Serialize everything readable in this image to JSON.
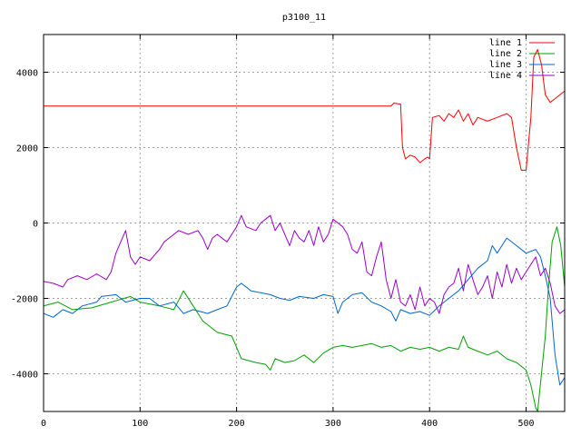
{
  "chart_data": {
    "type": "line",
    "title": "p3100_11",
    "xlabel": "",
    "ylabel": "",
    "xlim": [
      0,
      540
    ],
    "ylim": [
      -5000,
      5000
    ],
    "xticks": [
      0,
      100,
      200,
      300,
      400,
      500
    ],
    "yticks": [
      -4000,
      -2000,
      0,
      2000,
      4000
    ],
    "grid": true,
    "legend_position": "top-right",
    "series": [
      {
        "name": "line 1",
        "color": "#ff0000",
        "points": [
          [
            0,
            3100
          ],
          [
            100,
            3100
          ],
          [
            200,
            3100
          ],
          [
            300,
            3100
          ],
          [
            360,
            3100
          ],
          [
            363,
            3180
          ],
          [
            370,
            3150
          ],
          [
            372,
            2000
          ],
          [
            375,
            1700
          ],
          [
            380,
            1800
          ],
          [
            385,
            1750
          ],
          [
            390,
            1600
          ],
          [
            395,
            1700
          ],
          [
            398,
            1750
          ],
          [
            400,
            1700
          ],
          [
            403,
            2800
          ],
          [
            410,
            2850
          ],
          [
            415,
            2700
          ],
          [
            420,
            2900
          ],
          [
            425,
            2800
          ],
          [
            430,
            3000
          ],
          [
            435,
            2700
          ],
          [
            440,
            2900
          ],
          [
            445,
            2600
          ],
          [
            450,
            2800
          ],
          [
            460,
            2700
          ],
          [
            470,
            2800
          ],
          [
            480,
            2900
          ],
          [
            485,
            2800
          ],
          [
            490,
            2000
          ],
          [
            495,
            1400
          ],
          [
            500,
            1400
          ],
          [
            505,
            2800
          ],
          [
            508,
            4400
          ],
          [
            512,
            4600
          ],
          [
            516,
            4200
          ],
          [
            520,
            3400
          ],
          [
            525,
            3200
          ],
          [
            530,
            3300
          ],
          [
            535,
            3400
          ],
          [
            540,
            3500
          ]
        ]
      },
      {
        "name": "line 2",
        "color": "#00a000",
        "points": [
          [
            0,
            -2200
          ],
          [
            15,
            -2100
          ],
          [
            30,
            -2300
          ],
          [
            50,
            -2250
          ],
          [
            70,
            -2100
          ],
          [
            90,
            -1950
          ],
          [
            100,
            -2100
          ],
          [
            120,
            -2200
          ],
          [
            135,
            -2300
          ],
          [
            145,
            -1800
          ],
          [
            155,
            -2200
          ],
          [
            165,
            -2600
          ],
          [
            180,
            -2900
          ],
          [
            195,
            -3000
          ],
          [
            200,
            -3300
          ],
          [
            205,
            -3600
          ],
          [
            220,
            -3700
          ],
          [
            230,
            -3750
          ],
          [
            235,
            -3900
          ],
          [
            240,
            -3600
          ],
          [
            250,
            -3700
          ],
          [
            260,
            -3650
          ],
          [
            270,
            -3500
          ],
          [
            280,
            -3700
          ],
          [
            290,
            -3450
          ],
          [
            300,
            -3300
          ],
          [
            310,
            -3250
          ],
          [
            320,
            -3300
          ],
          [
            330,
            -3250
          ],
          [
            340,
            -3200
          ],
          [
            350,
            -3300
          ],
          [
            360,
            -3250
          ],
          [
            370,
            -3400
          ],
          [
            380,
            -3300
          ],
          [
            390,
            -3350
          ],
          [
            400,
            -3300
          ],
          [
            410,
            -3400
          ],
          [
            420,
            -3300
          ],
          [
            430,
            -3350
          ],
          [
            435,
            -3000
          ],
          [
            440,
            -3300
          ],
          [
            450,
            -3400
          ],
          [
            460,
            -3500
          ],
          [
            470,
            -3400
          ],
          [
            480,
            -3600
          ],
          [
            490,
            -3700
          ],
          [
            500,
            -3900
          ],
          [
            505,
            -4300
          ],
          [
            510,
            -4900
          ],
          [
            512,
            -5000
          ],
          [
            520,
            -3000
          ],
          [
            523,
            -1800
          ],
          [
            527,
            -500
          ],
          [
            532,
            -100
          ],
          [
            536,
            -600
          ],
          [
            540,
            -1700
          ]
        ]
      },
      {
        "name": "line 3",
        "color": "#0066cc",
        "points": [
          [
            0,
            -2400
          ],
          [
            10,
            -2500
          ],
          [
            20,
            -2300
          ],
          [
            30,
            -2400
          ],
          [
            40,
            -2200
          ],
          [
            55,
            -2100
          ],
          [
            60,
            -1950
          ],
          [
            75,
            -1900
          ],
          [
            85,
            -2100
          ],
          [
            100,
            -2000
          ],
          [
            110,
            -2000
          ],
          [
            120,
            -2200
          ],
          [
            135,
            -2100
          ],
          [
            145,
            -2400
          ],
          [
            155,
            -2300
          ],
          [
            170,
            -2400
          ],
          [
            180,
            -2300
          ],
          [
            190,
            -2200
          ],
          [
            200,
            -1700
          ],
          [
            205,
            -1600
          ],
          [
            215,
            -1800
          ],
          [
            225,
            -1850
          ],
          [
            235,
            -1900
          ],
          [
            245,
            -2000
          ],
          [
            255,
            -2050
          ],
          [
            265,
            -1950
          ],
          [
            280,
            -2000
          ],
          [
            290,
            -1900
          ],
          [
            300,
            -1950
          ],
          [
            305,
            -2400
          ],
          [
            310,
            -2100
          ],
          [
            320,
            -1900
          ],
          [
            330,
            -1850
          ],
          [
            340,
            -2100
          ],
          [
            350,
            -2200
          ],
          [
            360,
            -2350
          ],
          [
            365,
            -2600
          ],
          [
            370,
            -2300
          ],
          [
            380,
            -2400
          ],
          [
            390,
            -2350
          ],
          [
            400,
            -2450
          ],
          [
            410,
            -2200
          ],
          [
            420,
            -2000
          ],
          [
            430,
            -1800
          ],
          [
            440,
            -1500
          ],
          [
            450,
            -1200
          ],
          [
            460,
            -1000
          ],
          [
            465,
            -600
          ],
          [
            470,
            -800
          ],
          [
            480,
            -400
          ],
          [
            490,
            -600
          ],
          [
            500,
            -800
          ],
          [
            510,
            -700
          ],
          [
            515,
            -900
          ],
          [
            520,
            -1400
          ],
          [
            525,
            -2000
          ],
          [
            530,
            -3500
          ],
          [
            535,
            -4300
          ],
          [
            540,
            -4100
          ]
        ]
      },
      {
        "name": "line 4",
        "color": "#9900cc",
        "points": [
          [
            0,
            -1550
          ],
          [
            10,
            -1600
          ],
          [
            20,
            -1700
          ],
          [
            25,
            -1500
          ],
          [
            35,
            -1400
          ],
          [
            45,
            -1500
          ],
          [
            55,
            -1350
          ],
          [
            65,
            -1500
          ],
          [
            70,
            -1300
          ],
          [
            75,
            -800
          ],
          [
            80,
            -500
          ],
          [
            85,
            -200
          ],
          [
            90,
            -900
          ],
          [
            95,
            -1100
          ],
          [
            100,
            -900
          ],
          [
            110,
            -1000
          ],
          [
            120,
            -700
          ],
          [
            125,
            -500
          ],
          [
            135,
            -300
          ],
          [
            140,
            -200
          ],
          [
            150,
            -300
          ],
          [
            160,
            -200
          ],
          [
            165,
            -400
          ],
          [
            170,
            -700
          ],
          [
            175,
            -400
          ],
          [
            180,
            -300
          ],
          [
            190,
            -500
          ],
          [
            200,
            -100
          ],
          [
            205,
            200
          ],
          [
            210,
            -100
          ],
          [
            220,
            -200
          ],
          [
            225,
            0
          ],
          [
            230,
            100
          ],
          [
            235,
            200
          ],
          [
            240,
            -200
          ],
          [
            245,
            0
          ],
          [
            250,
            -300
          ],
          [
            255,
            -600
          ],
          [
            260,
            -200
          ],
          [
            265,
            -400
          ],
          [
            270,
            -500
          ],
          [
            275,
            -200
          ],
          [
            280,
            -600
          ],
          [
            285,
            -100
          ],
          [
            290,
            -500
          ],
          [
            295,
            -300
          ],
          [
            300,
            100
          ],
          [
            305,
            0
          ],
          [
            310,
            -100
          ],
          [
            315,
            -300
          ],
          [
            320,
            -700
          ],
          [
            325,
            -800
          ],
          [
            330,
            -500
          ],
          [
            335,
            -1300
          ],
          [
            340,
            -1400
          ],
          [
            345,
            -900
          ],
          [
            350,
            -500
          ],
          [
            355,
            -1500
          ],
          [
            360,
            -2000
          ],
          [
            365,
            -1500
          ],
          [
            370,
            -2100
          ],
          [
            375,
            -2200
          ],
          [
            380,
            -1900
          ],
          [
            385,
            -2300
          ],
          [
            390,
            -1700
          ],
          [
            395,
            -2200
          ],
          [
            400,
            -2000
          ],
          [
            405,
            -2100
          ],
          [
            410,
            -2400
          ],
          [
            415,
            -1900
          ],
          [
            420,
            -1700
          ],
          [
            425,
            -1600
          ],
          [
            430,
            -1200
          ],
          [
            435,
            -1800
          ],
          [
            440,
            -1100
          ],
          [
            445,
            -1500
          ],
          [
            450,
            -1900
          ],
          [
            455,
            -1700
          ],
          [
            460,
            -1400
          ],
          [
            465,
            -2000
          ],
          [
            470,
            -1300
          ],
          [
            475,
            -1700
          ],
          [
            480,
            -1100
          ],
          [
            485,
            -1600
          ],
          [
            490,
            -1200
          ],
          [
            495,
            -1500
          ],
          [
            500,
            -1300
          ],
          [
            505,
            -1100
          ],
          [
            510,
            -900
          ],
          [
            515,
            -1400
          ],
          [
            520,
            -1200
          ],
          [
            525,
            -1600
          ],
          [
            530,
            -2200
          ],
          [
            535,
            -2400
          ],
          [
            540,
            -2300
          ]
        ]
      }
    ]
  }
}
